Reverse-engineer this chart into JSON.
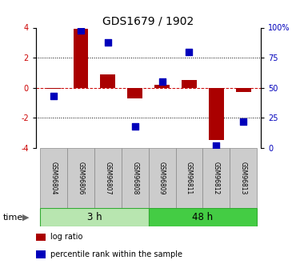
{
  "title": "GDS1679 / 1902",
  "samples": [
    "GSM96804",
    "GSM96806",
    "GSM96807",
    "GSM96808",
    "GSM96809",
    "GSM96811",
    "GSM96812",
    "GSM96813"
  ],
  "log_ratio": [
    -0.1,
    3.9,
    0.9,
    -0.7,
    0.2,
    0.5,
    -3.5,
    -0.3
  ],
  "percentile_rank": [
    43,
    98,
    88,
    18,
    55,
    80,
    2,
    22
  ],
  "groups": [
    {
      "label": "3 h",
      "indices": [
        0,
        1,
        2,
        3
      ],
      "color": "#b8e6b0"
    },
    {
      "label": "48 h",
      "indices": [
        4,
        5,
        6,
        7
      ],
      "color": "#44cc44"
    }
  ],
  "ylim": [
    -4,
    4
  ],
  "yticks_left": [
    -4,
    -2,
    0,
    2,
    4
  ],
  "yticks_right": [
    0,
    25,
    50,
    75,
    100
  ],
  "bar_color": "#aa0000",
  "dot_color": "#0000bb",
  "zero_line_color": "#cc0000",
  "grid_color": "#000000",
  "bg_color": "#ffffff",
  "legend_items": [
    {
      "label": "log ratio",
      "color": "#aa0000"
    },
    {
      "label": "percentile rank within the sample",
      "color": "#0000bb"
    }
  ],
  "bar_width": 0.55,
  "dot_size": 28
}
